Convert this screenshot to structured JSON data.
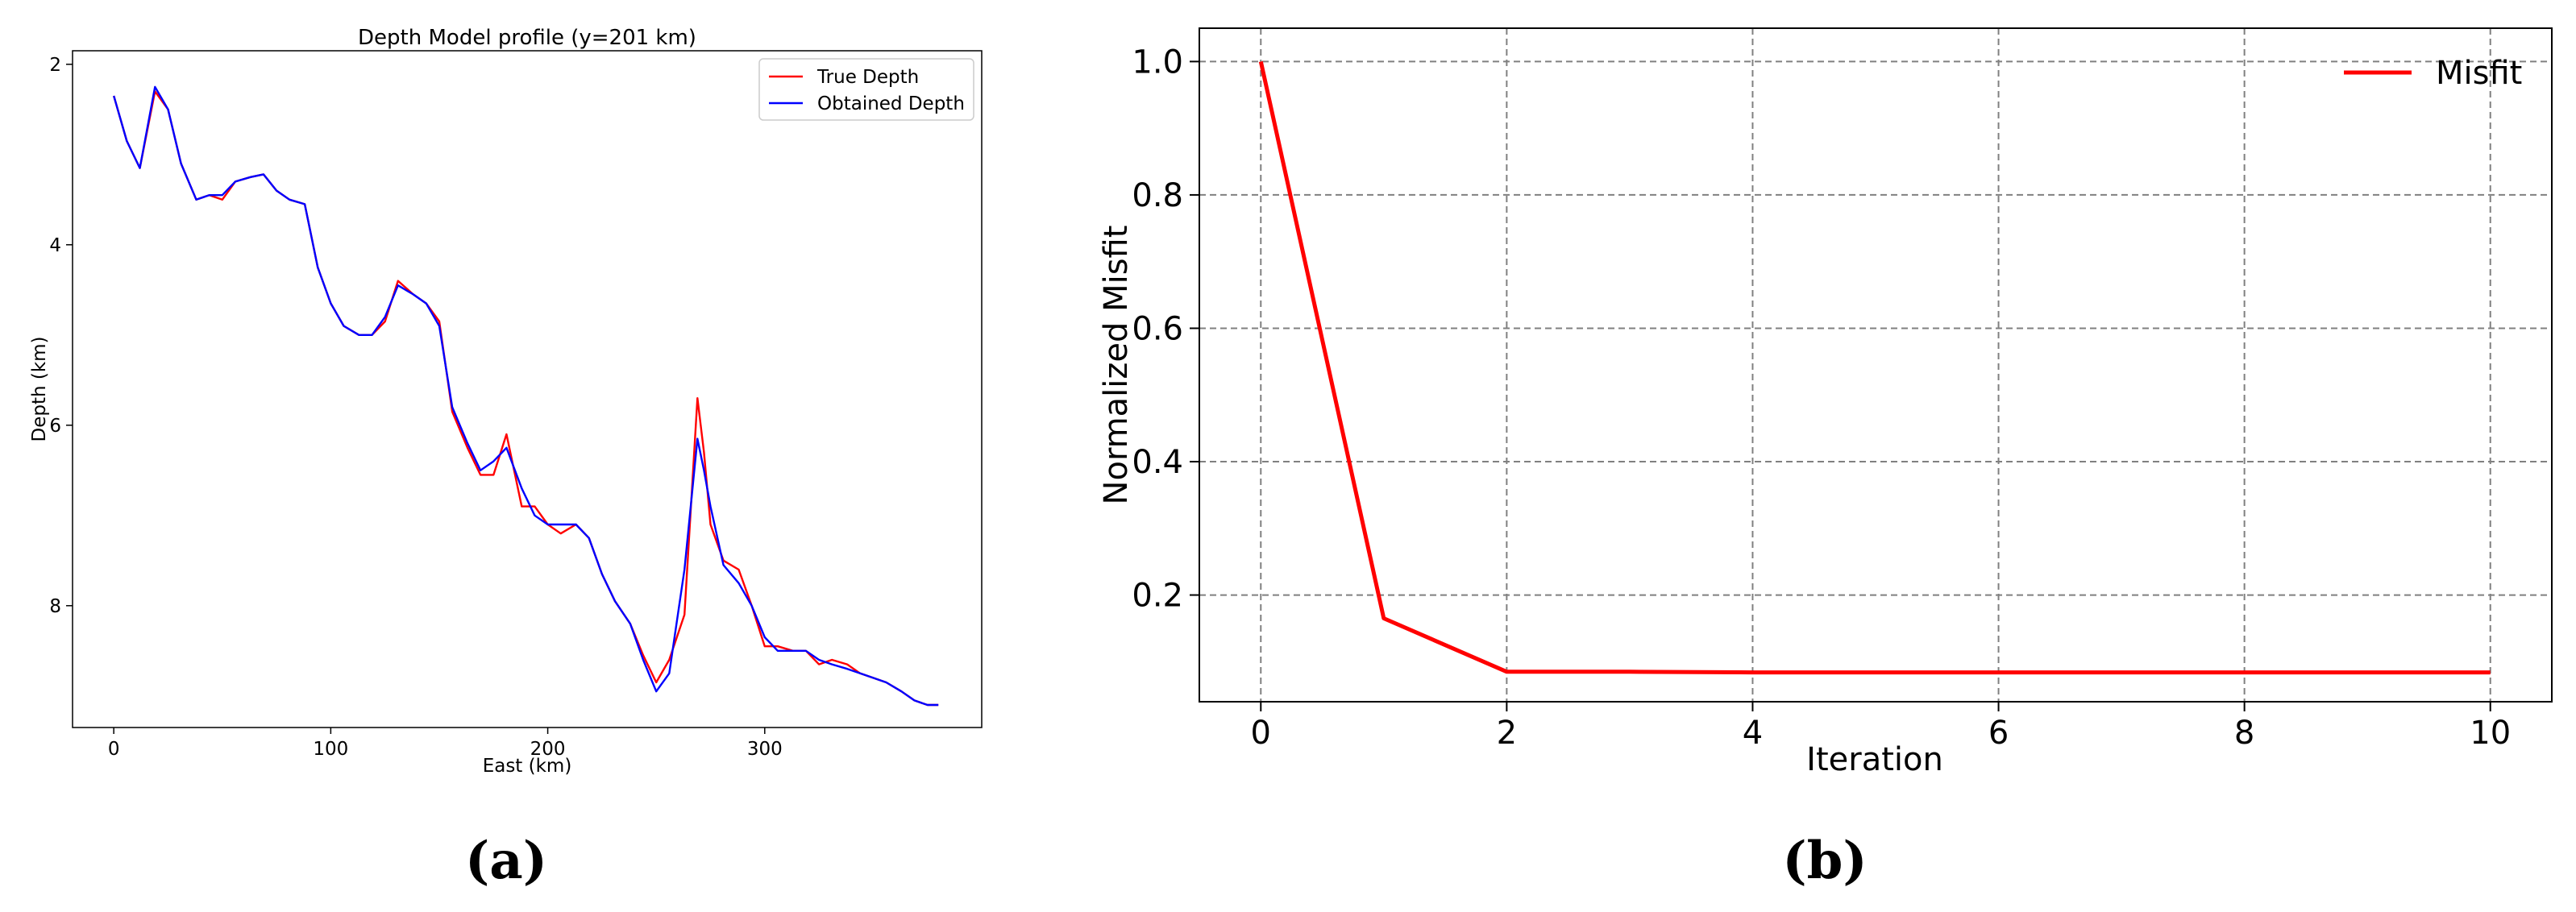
{
  "panels": {
    "a": "(a)",
    "b": "(b)"
  },
  "chart_data": [
    {
      "type": "line",
      "title": "Depth Model profile (y=201 km)",
      "xlabel": "East (km)",
      "ylabel": "Depth (km)",
      "xlim": [
        -19,
        400
      ],
      "ylim": [
        9.35,
        1.85
      ],
      "y_inverted": true,
      "xticks": [
        0,
        100,
        200,
        300
      ],
      "yticks": [
        2,
        4,
        6,
        8
      ],
      "grid": false,
      "legend_position": "top-right",
      "series": [
        {
          "name": "True Depth",
          "color": "#ff0000",
          "x": [
            0,
            6,
            12,
            19,
            25,
            31,
            38,
            44,
            50,
            56,
            63,
            69,
            75,
            81,
            88,
            94,
            100,
            106,
            113,
            119,
            125,
            131,
            138,
            144,
            150,
            156,
            163,
            169,
            175,
            181,
            188,
            194,
            200,
            206,
            213,
            219,
            225,
            231,
            238,
            244,
            250,
            256,
            263,
            269,
            272,
            275,
            281,
            288,
            294,
            300,
            306,
            313,
            319,
            325,
            331,
            338,
            344,
            350,
            356,
            363,
            369,
            375,
            380
          ],
          "y": [
            2.35,
            2.85,
            3.15,
            2.3,
            2.5,
            3.1,
            3.5,
            3.45,
            3.5,
            3.3,
            3.25,
            3.22,
            3.4,
            3.5,
            3.55,
            4.25,
            4.65,
            4.9,
            5.0,
            5.0,
            4.85,
            4.4,
            4.55,
            4.65,
            4.85,
            5.85,
            6.25,
            6.55,
            6.55,
            6.1,
            6.9,
            6.9,
            7.1,
            7.2,
            7.1,
            7.25,
            7.65,
            7.95,
            8.2,
            8.55,
            8.85,
            8.6,
            8.1,
            5.7,
            6.3,
            7.1,
            7.5,
            7.6,
            8.0,
            8.45,
            8.45,
            8.5,
            8.5,
            8.65,
            8.6,
            8.65,
            8.75,
            8.8,
            8.85,
            8.95,
            9.05,
            9.1,
            9.1
          ]
        },
        {
          "name": "Obtained Depth",
          "color": "#0000ff",
          "x": [
            0,
            6,
            12,
            19,
            25,
            31,
            38,
            44,
            50,
            56,
            63,
            69,
            75,
            81,
            88,
            94,
            100,
            106,
            113,
            119,
            125,
            131,
            138,
            144,
            150,
            156,
            163,
            169,
            175,
            181,
            188,
            194,
            200,
            206,
            213,
            219,
            225,
            231,
            238,
            244,
            250,
            256,
            263,
            269,
            272,
            275,
            281,
            288,
            294,
            300,
            306,
            313,
            319,
            325,
            331,
            338,
            344,
            350,
            356,
            363,
            369,
            375,
            380
          ],
          "y": [
            2.35,
            2.85,
            3.15,
            2.25,
            2.5,
            3.1,
            3.5,
            3.45,
            3.45,
            3.3,
            3.25,
            3.22,
            3.4,
            3.5,
            3.55,
            4.25,
            4.65,
            4.9,
            5.0,
            5.0,
            4.8,
            4.45,
            4.55,
            4.65,
            4.9,
            5.8,
            6.2,
            6.5,
            6.4,
            6.25,
            6.7,
            7.0,
            7.1,
            7.1,
            7.1,
            7.25,
            7.65,
            7.95,
            8.2,
            8.6,
            8.95,
            8.75,
            7.6,
            6.15,
            6.5,
            6.9,
            7.55,
            7.75,
            8.0,
            8.35,
            8.5,
            8.5,
            8.5,
            8.6,
            8.65,
            8.7,
            8.75,
            8.8,
            8.85,
            8.95,
            9.05,
            9.1,
            9.1
          ]
        }
      ]
    },
    {
      "type": "line",
      "title": "",
      "xlabel": "Iteration",
      "ylabel": "Normalized Misfit",
      "xlim": [
        -0.5,
        10.5
      ],
      "ylim": [
        0.04,
        1.05
      ],
      "xticks": [
        0,
        2,
        4,
        6,
        8,
        10
      ],
      "yticks": [
        0.2,
        0.4,
        0.6,
        0.8,
        1.0
      ],
      "ytick_labels": [
        "0.2",
        "0.4",
        "0.6",
        "0.8",
        "1.0"
      ],
      "grid": true,
      "legend_position": "top-right",
      "series": [
        {
          "name": "Misfit",
          "color": "#ff0000",
          "x": [
            0,
            1,
            2,
            3,
            4,
            5,
            6,
            7,
            8,
            9,
            10
          ],
          "y": [
            1.0,
            0.165,
            0.085,
            0.085,
            0.084,
            0.084,
            0.084,
            0.084,
            0.084,
            0.084,
            0.084
          ]
        }
      ]
    }
  ]
}
